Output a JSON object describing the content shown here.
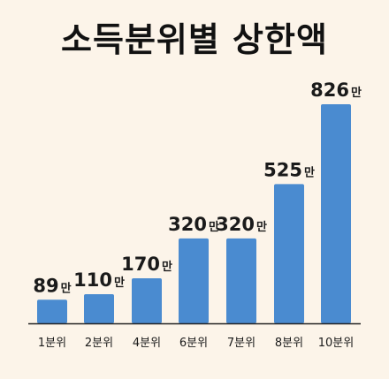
{
  "chart_data": {
    "type": "bar",
    "title": "소득분위별 상한액",
    "categories": [
      "1분위",
      "2분위",
      "4분위",
      "6분위",
      "7분위",
      "8분위",
      "10분위"
    ],
    "values": [
      89,
      110,
      170,
      320,
      320,
      525,
      826
    ],
    "value_unit": "만",
    "bar_color": "#4a8bd0",
    "axis_color": "#222222",
    "grid": false,
    "legend": "none"
  }
}
